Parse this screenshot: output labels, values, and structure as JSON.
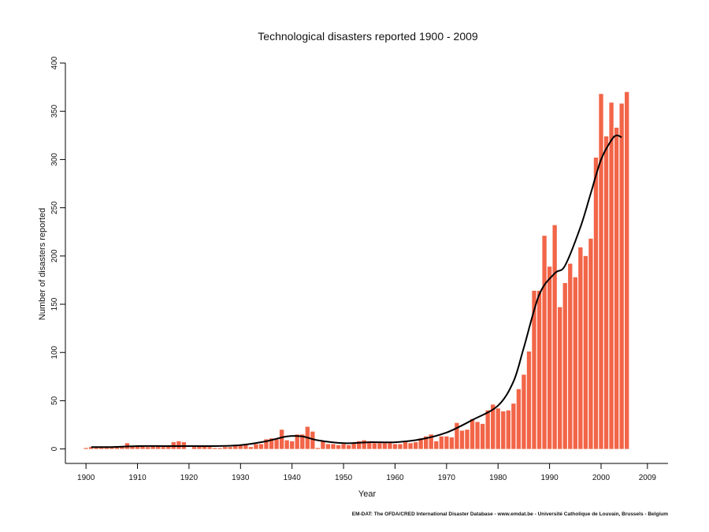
{
  "chart_data": {
    "type": "bar",
    "title": "Technological disasters reported 1900 - 2009",
    "xlabel": "Year",
    "ylabel": "Number of disasters reported",
    "source": "EM-DAT: The OFDA/CRED International Disaster Database - www.emdat.be - Université Catholique de Louvain, Brussels - Belgium",
    "xlim": [
      1896,
      2013
    ],
    "ylim": [
      -15,
      400
    ],
    "x_ticks": [
      1900,
      1910,
      1920,
      1930,
      1940,
      1950,
      1960,
      1970,
      1980,
      1990,
      2000,
      2009
    ],
    "y_ticks": [
      0,
      50,
      100,
      150,
      200,
      250,
      300,
      350,
      400
    ],
    "bar_color": "#f26548",
    "trend_color": "#000000",
    "series": [
      {
        "x": [
          1900,
          1901,
          1902,
          1903,
          1904,
          1905,
          1906,
          1907,
          1908,
          1909,
          1910,
          1911,
          1912,
          1913,
          1914,
          1915,
          1916,
          1917,
          1918,
          1919,
          1920,
          1921,
          1922,
          1923,
          1924,
          1925,
          1926,
          1927,
          1928,
          1929,
          1930,
          1931,
          1932,
          1933,
          1934,
          1935,
          1936,
          1937,
          1938,
          1939,
          1940,
          1941,
          1942,
          1943,
          1944,
          1945,
          1946,
          1947,
          1948,
          1949,
          1950,
          1951,
          1952,
          1953,
          1954,
          1955,
          1956,
          1957,
          1958,
          1959,
          1960,
          1961,
          1962,
          1963,
          1964,
          1965,
          1966,
          1967,
          1968,
          1969,
          1970,
          1971,
          1972,
          1973,
          1974,
          1975,
          1976,
          1977,
          1978,
          1979,
          1980,
          1981,
          1982,
          1983,
          1984,
          1985,
          1986,
          1987,
          1988,
          1989,
          1990,
          1991,
          1992,
          1993,
          1994,
          1995,
          1996,
          1997,
          1998,
          1999,
          2000,
          2001,
          2002,
          2003,
          2004,
          2005
        ],
        "values": [
          1,
          2,
          2,
          2,
          2,
          2,
          3,
          3,
          6,
          3,
          3,
          3,
          2,
          3,
          3,
          2,
          3,
          7,
          8,
          7,
          0,
          2,
          3,
          3,
          2,
          1,
          1,
          2,
          2,
          3,
          4,
          4,
          2,
          5,
          5,
          10,
          11,
          10,
          20,
          9,
          8,
          15,
          15,
          23,
          18,
          1,
          8,
          5,
          5,
          4,
          5,
          4,
          6,
          8,
          9,
          8,
          6,
          6,
          6,
          6,
          5,
          5,
          7,
          6,
          7,
          11,
          13,
          15,
          8,
          13,
          13,
          12,
          27,
          19,
          20,
          31,
          28,
          26,
          40,
          46,
          42,
          39,
          40,
          47,
          62,
          77,
          101,
          164,
          164,
          221,
          189,
          232,
          147,
          172,
          192,
          178,
          209,
          200,
          218,
          302,
          368,
          324,
          359,
          333,
          358,
          370
        ]
      },
      {
        "name": "",
        "x": [
          1901,
          1905,
          1910,
          1915,
          1920,
          1925,
          1930,
          1935,
          1939,
          1942,
          1945,
          1950,
          1955,
          1960,
          1965,
          1970,
          1975,
          1980,
          1983,
          1985,
          1988,
          1991,
          1993,
          1996,
          1998,
          2000,
          2002,
          2003,
          2004
        ],
        "values": [
          2,
          2,
          3,
          3,
          3,
          3,
          4,
          8,
          13,
          13,
          9,
          6,
          7,
          7,
          10,
          17,
          30,
          45,
          70,
          105,
          160,
          182,
          190,
          230,
          265,
          300,
          320,
          325,
          323
        ]
      }
    ]
  }
}
